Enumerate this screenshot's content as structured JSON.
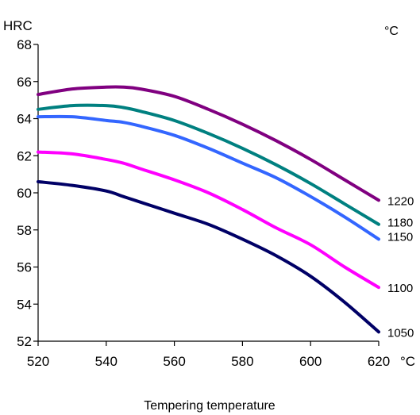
{
  "chart_data": {
    "type": "line",
    "title": "",
    "xlabel": "Tempering temperature",
    "ylabel": "HRC",
    "x_unit": "°C",
    "series_unit": "°C",
    "xlim": [
      520,
      620
    ],
    "ylim": [
      52,
      68
    ],
    "x_ticks": [
      520,
      540,
      560,
      580,
      600,
      620
    ],
    "y_ticks": [
      52,
      54,
      56,
      58,
      60,
      62,
      64,
      66,
      68
    ],
    "grid": false,
    "series": [
      {
        "name": "1220",
        "color": "#800080",
        "x": [
          520,
          530,
          540,
          545,
          550,
          560,
          570,
          580,
          590,
          600,
          610,
          620
        ],
        "values": [
          65.3,
          65.6,
          65.7,
          65.7,
          65.6,
          65.2,
          64.5,
          63.7,
          62.8,
          61.8,
          60.7,
          59.6
        ]
      },
      {
        "name": "1180",
        "color": "#008080",
        "x": [
          520,
          530,
          540,
          545,
          550,
          560,
          570,
          580,
          590,
          600,
          610,
          620
        ],
        "values": [
          64.5,
          64.7,
          64.7,
          64.6,
          64.4,
          63.9,
          63.2,
          62.4,
          61.5,
          60.5,
          59.4,
          58.3
        ]
      },
      {
        "name": "1150",
        "color": "#3366FF",
        "x": [
          520,
          530,
          540,
          545,
          550,
          560,
          570,
          580,
          590,
          600,
          610,
          620
        ],
        "values": [
          64.1,
          64.1,
          63.9,
          63.8,
          63.6,
          63.1,
          62.4,
          61.6,
          60.8,
          59.8,
          58.7,
          57.5
        ]
      },
      {
        "name": "1100",
        "color": "#FF00FF",
        "x": [
          520,
          530,
          540,
          545,
          550,
          560,
          570,
          580,
          590,
          600,
          610,
          620
        ],
        "values": [
          62.2,
          62.1,
          61.8,
          61.6,
          61.3,
          60.7,
          60.0,
          59.1,
          58.1,
          57.2,
          56.0,
          54.9
        ]
      },
      {
        "name": "1050",
        "color": "#000066",
        "x": [
          520,
          530,
          540,
          545,
          550,
          560,
          570,
          580,
          590,
          600,
          610,
          620
        ],
        "values": [
          60.6,
          60.4,
          60.1,
          59.8,
          59.5,
          58.9,
          58.3,
          57.5,
          56.6,
          55.5,
          54.1,
          52.5
        ]
      }
    ]
  }
}
